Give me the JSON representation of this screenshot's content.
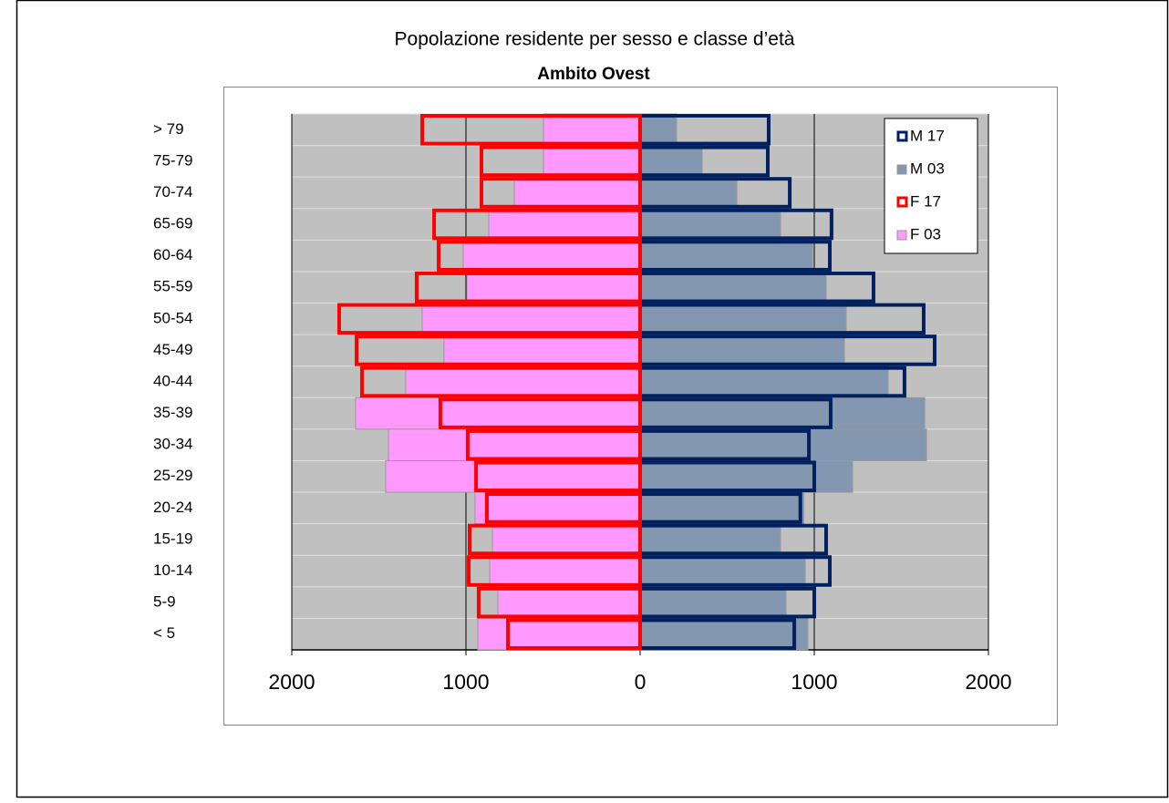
{
  "chart_data": {
    "type": "pyramid",
    "title": "Popolazione residente per sesso e classe d’età",
    "subtitle": "Ambito Ovest",
    "categories": [
      "> 79",
      "75-79",
      "70-74",
      "65-69",
      "60-64",
      "55-59",
      "50-54",
      "45-49",
      "40-44",
      "35-39",
      "30-34",
      "25-29",
      "20-24",
      "15-19",
      "10-14",
      "5-9",
      "< 5"
    ],
    "series": [
      {
        "name": "M 17",
        "color": "#002060",
        "style": "outline",
        "values": [
          738,
          733,
          859,
          1099,
          1089,
          1340,
          1628,
          1691,
          1518,
          1094,
          969,
          1000,
          920,
          1068,
          1089,
          1000,
          885
        ]
      },
      {
        "name": "M 03",
        "color": "#8497b0",
        "style": "fill",
        "values": [
          209,
          356,
          555,
          806,
          990,
          1068,
          1183,
          1173,
          1424,
          1634,
          1644,
          1220,
          940,
          806,
          948,
          838,
          963
        ]
      },
      {
        "name": "F 17",
        "color": "#ff0000",
        "style": "outline",
        "values": [
          -1251,
          -911,
          -911,
          -1183,
          -1157,
          -1283,
          -1728,
          -1628,
          -1597,
          -1147,
          -990,
          -942,
          -880,
          -979,
          -984,
          -927,
          -759
        ]
      },
      {
        "name": "F 03",
        "color": "#ff99ff",
        "style": "fill",
        "values": [
          -555,
          -555,
          -722,
          -869,
          -1016,
          -995,
          -1251,
          -1126,
          -1346,
          -1634,
          -1445,
          -1461,
          -948,
          -848,
          -864,
          -817,
          -932
        ]
      }
    ],
    "xlim": [
      -2000,
      2000
    ],
    "xticks": [
      {
        "value": -2000,
        "label": "2000"
      },
      {
        "value": -1000,
        "label": "1000"
      },
      0,
      1000,
      2000
    ],
    "grid": true,
    "legend": "top-right"
  }
}
